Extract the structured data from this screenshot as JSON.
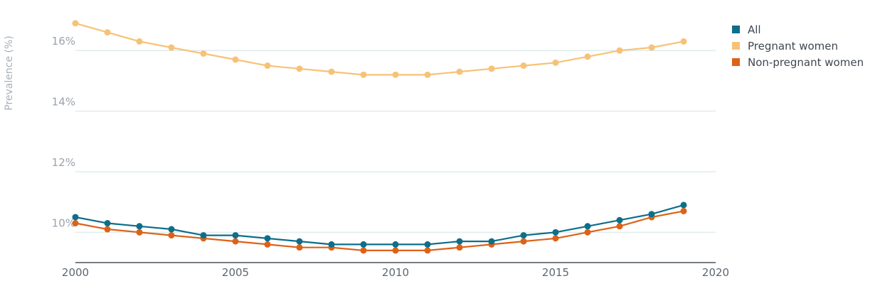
{
  "chart_data": {
    "type": "line",
    "xlabel": "",
    "ylabel": "Prevalence (%)",
    "xlim": [
      2000,
      2020
    ],
    "ylim": [
      9.0,
      17.2
    ],
    "x_ticks": [
      2000,
      2005,
      2010,
      2015,
      2020
    ],
    "x_tick_labels": [
      "2000",
      "2005",
      "2010",
      "2015",
      "2020"
    ],
    "y_ticks": [
      10,
      12,
      14,
      16
    ],
    "y_tick_labels": [
      "10%",
      "12%",
      "14%",
      "16%"
    ],
    "grid": "horizontal",
    "legend_position": "top-right",
    "x": [
      2000,
      2001,
      2002,
      2003,
      2004,
      2005,
      2006,
      2007,
      2008,
      2009,
      2010,
      2011,
      2012,
      2013,
      2014,
      2015,
      2016,
      2017,
      2018,
      2019
    ],
    "series": [
      {
        "name": "All",
        "color": "#0e6e8a",
        "values": [
          10.5,
          10.3,
          10.2,
          10.1,
          9.9,
          9.9,
          9.8,
          9.7,
          9.6,
          9.6,
          9.6,
          9.6,
          9.7,
          9.7,
          9.9,
          10.0,
          10.2,
          10.4,
          10.6,
          10.9
        ]
      },
      {
        "name": "Pregnant women",
        "color": "#f7c277",
        "values": [
          16.9,
          16.6,
          16.3,
          16.1,
          15.9,
          15.7,
          15.5,
          15.4,
          15.3,
          15.2,
          15.2,
          15.2,
          15.3,
          15.4,
          15.5,
          15.6,
          15.8,
          16.0,
          16.1,
          16.3
        ]
      },
      {
        "name": "Non-pregnant women",
        "color": "#dc6218",
        "values": [
          10.3,
          10.1,
          10.0,
          9.9,
          9.8,
          9.7,
          9.6,
          9.5,
          9.5,
          9.4,
          9.4,
          9.4,
          9.5,
          9.6,
          9.7,
          9.8,
          10.0,
          10.2,
          10.5,
          10.7
        ]
      }
    ],
    "colors": {
      "grid": "#e1ecec",
      "axis": "#4b5259"
    }
  }
}
